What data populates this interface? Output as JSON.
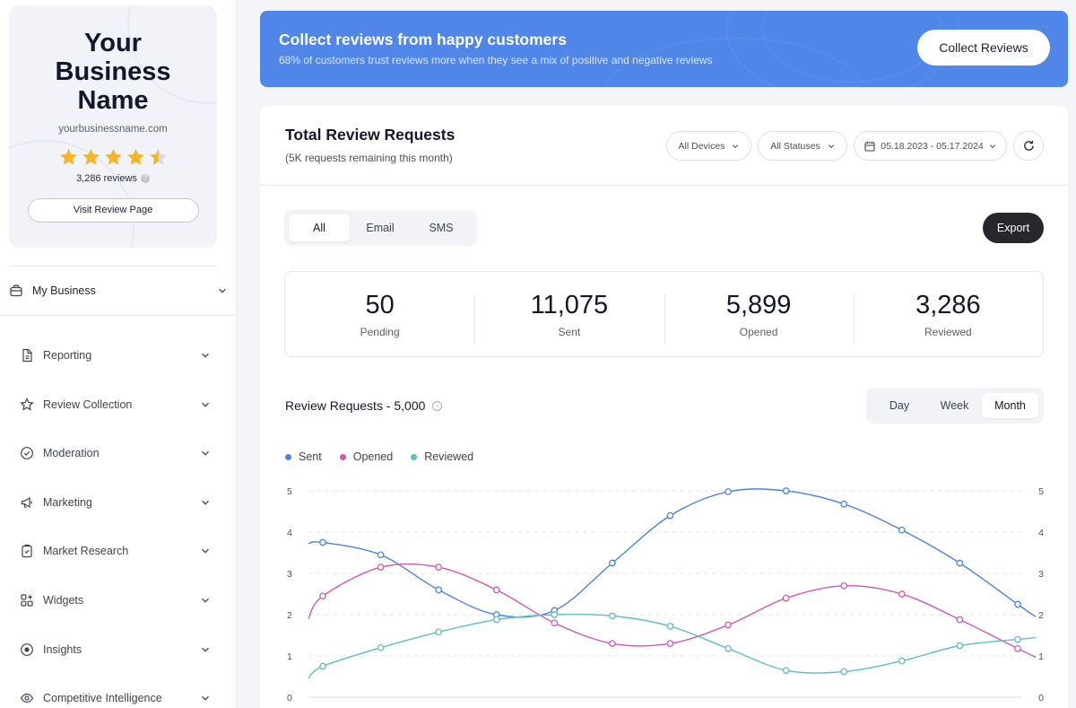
{
  "sidebar": {
    "business_name": "Your Business Name",
    "business_url": "yourbusinessname.com",
    "rating": 4.5,
    "reviews_count": "3,286 reviews",
    "visit_button": "Visit Review Page",
    "my_business": "My Business",
    "nav": [
      {
        "label": "Reporting",
        "icon": "document-icon"
      },
      {
        "label": "Review Collection",
        "icon": "star-outline-icon"
      },
      {
        "label": "Moderation",
        "icon": "check-circle-icon"
      },
      {
        "label": "Marketing",
        "icon": "megaphone-icon"
      },
      {
        "label": "Market Research",
        "icon": "clipboard-icon"
      },
      {
        "label": "Widgets",
        "icon": "widgets-icon"
      },
      {
        "label": "Insights",
        "icon": "target-icon"
      },
      {
        "label": "Competitive Intelligence",
        "icon": "eye-icon"
      }
    ]
  },
  "banner": {
    "title": "Collect reviews from happy customers",
    "subtitle": "68% of customers trust reviews more when they see a mix of positive and negative reviews",
    "button": "Collect Reviews"
  },
  "panel": {
    "title": "Total Review Requests",
    "subtitle": "(5K requests remaining this month)",
    "filters": {
      "devices": "All Devices",
      "statuses": "All Statuses",
      "date_range": "05.18.2023 - 05.17.2024"
    },
    "segments": [
      "All",
      "Email",
      "SMS"
    ],
    "active_segment": "All",
    "export": "Export",
    "stats": [
      {
        "value": "50",
        "label": "Pending"
      },
      {
        "value": "11,075",
        "label": "Sent"
      },
      {
        "value": "5,899",
        "label": "Opened"
      },
      {
        "value": "3,286",
        "label": "Reviewed"
      }
    ],
    "chart_title": "Review Requests - 5,000",
    "periods": [
      "Day",
      "Week",
      "Month"
    ],
    "active_period": "Month"
  },
  "colors": {
    "sent": "#4a84e0",
    "opened": "#d157b8",
    "reviewed": "#5dbdc3",
    "banner": "#4f86e8",
    "star": "#f4b528"
  },
  "chart_data": {
    "type": "line",
    "x": [
      1,
      2,
      3,
      4,
      5,
      6,
      7,
      8,
      9,
      10,
      11,
      12,
      13
    ],
    "ylim": [
      0,
      5
    ],
    "yticks": [
      "0",
      "1",
      "2",
      "3",
      "4",
      "5"
    ],
    "grid": true,
    "legend_position": "top-left",
    "series": [
      {
        "name": "Sent",
        "values": [
          3.75,
          3.45,
          2.6,
          2.0,
          2.1,
          3.25,
          4.4,
          4.98,
          5.0,
          4.68,
          4.05,
          3.25,
          2.25
        ]
      },
      {
        "name": "Opened",
        "values": [
          2.45,
          3.15,
          3.15,
          2.6,
          1.8,
          1.3,
          1.3,
          1.75,
          2.4,
          2.7,
          2.5,
          1.88,
          1.18
        ]
      },
      {
        "name": "Reviewed",
        "values": [
          0.75,
          1.2,
          1.58,
          1.88,
          2.0,
          1.97,
          1.72,
          1.18,
          0.65,
          0.62,
          0.88,
          1.25,
          1.4
        ]
      }
    ]
  }
}
